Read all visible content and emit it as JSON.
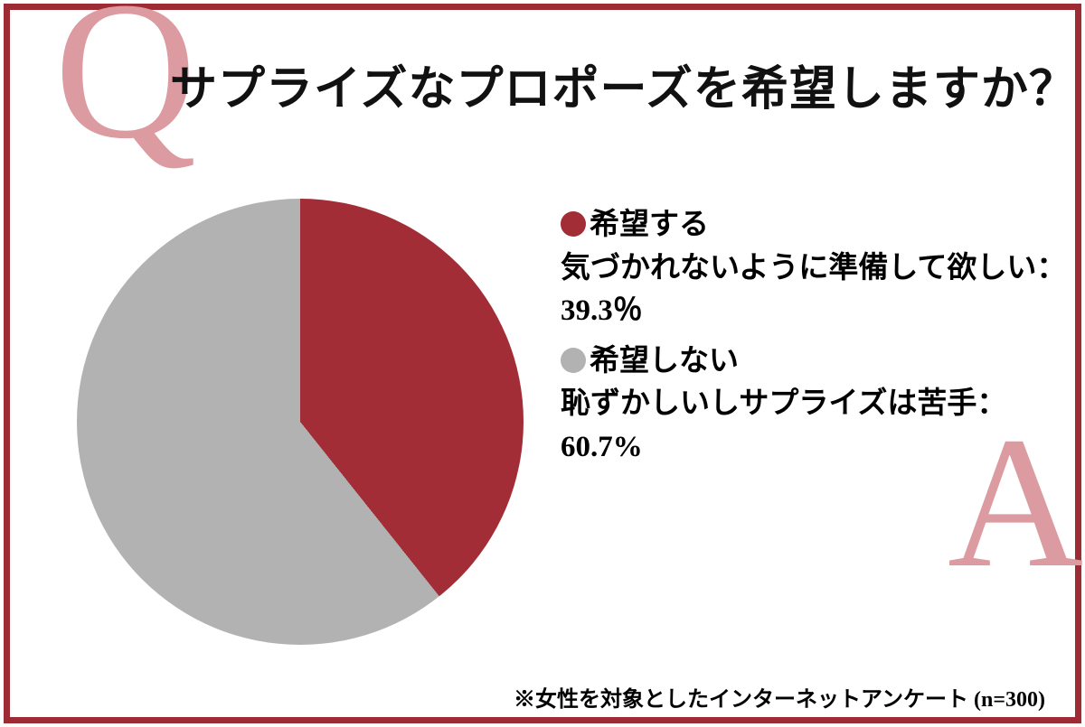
{
  "page": {
    "q_label": "Q",
    "a_label": "A"
  },
  "colors": {
    "border": "#9c2b33",
    "accent_letter": "#dc9ba0"
  },
  "chart_data": {
    "type": "pie",
    "title": "サプライズなプロポーズを希望しますか？",
    "direction": "clockwise",
    "start_angle_deg": 0,
    "legend_position": "right",
    "slices": [
      {
        "label": "希望する",
        "description": "気づかれないように準備して欲しい：",
        "value": 39.3,
        "display": "39.3％",
        "color": "#a32d36"
      },
      {
        "label": "希望しない",
        "description": "恥ずかしいしサプライズは苦手：",
        "value": 60.7,
        "display": "60.7%",
        "color": "#b2b2b2"
      }
    ],
    "note": "※女性を対象としたインターネットアンケート (n=300)"
  }
}
